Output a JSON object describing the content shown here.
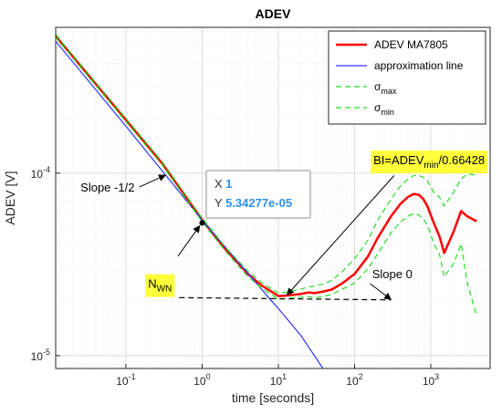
{
  "chart_data": {
    "type": "line",
    "title": "ADEV",
    "xlabel": "time [seconds]",
    "ylabel": "ADEV [V]",
    "xscale": "log",
    "yscale": "log",
    "xlim": [
      0.012,
      6000
    ],
    "ylim": [
      8.5e-06,
      0.00063
    ],
    "grid": true,
    "legend_position": "top-right",
    "x_ticks": [
      {
        "value": 0.1,
        "base": "10",
        "exp": "-1"
      },
      {
        "value": 1,
        "base": "10",
        "exp": "0"
      },
      {
        "value": 10,
        "base": "10",
        "exp": "1"
      },
      {
        "value": 100,
        "base": "10",
        "exp": "2"
      },
      {
        "value": 1000,
        "base": "10",
        "exp": "3"
      }
    ],
    "y_ticks": [
      {
        "value": 1e-05,
        "base": "10",
        "exp": "-5"
      },
      {
        "value": 0.0001,
        "base": "10",
        "exp": "-4"
      }
    ],
    "series": [
      {
        "name": "ADEV MA7805",
        "legend_base": "ADEV MA7805",
        "legend_sub": "",
        "color": "#ff0000",
        "style": "solid",
        "width": 2.5,
        "x": [
          0.012,
          0.03,
          0.1,
          0.3,
          1,
          2,
          4,
          6,
          8,
          10,
          12,
          15,
          20,
          25,
          30,
          40,
          50,
          70,
          100,
          150,
          200,
          300,
          400,
          500,
          600,
          700,
          800,
          900,
          1100,
          1300,
          1500,
          2000,
          2500,
          3000,
          4000
        ],
        "y": [
          0.000565,
          0.000357,
          0.000196,
          0.000113,
          5.55e-05,
          3.85e-05,
          2.8e-05,
          2.43e-05,
          2.25e-05,
          2.12e-05,
          2.13e-05,
          2.15e-05,
          2.18e-05,
          2.22e-05,
          2.2e-05,
          2.25e-05,
          2.3e-05,
          2.5e-05,
          2.8e-05,
          3.5e-05,
          4.4e-05,
          5.8e-05,
          6.8e-05,
          7.4e-05,
          7.7e-05,
          7.6e-05,
          7.2e-05,
          6.6e-05,
          5.3e-05,
          4.5e-05,
          3.65e-05,
          4.8e-05,
          6.2e-05,
          5.8e-05,
          5.45e-05
        ]
      },
      {
        "name": "approximation line",
        "legend_base": "approximation line",
        "legend_sub": "",
        "color": "#3333ff",
        "style": "solid",
        "width": 1.2,
        "x": [
          0.012,
          0.1,
          1,
          8,
          10,
          20,
          40
        ],
        "y": [
          0.000529,
          0.000181,
          5.53e-05,
          2.01e-05,
          1.81e-05,
          1.28e-05,
          8.3e-06
        ]
      },
      {
        "name": "σmax",
        "legend_base": "σ",
        "legend_sub": "max",
        "color": "#22dd22",
        "style": "dashed",
        "width": 1.2,
        "x": [
          0.012,
          0.03,
          0.1,
          0.3,
          1,
          2,
          4,
          6,
          8,
          10,
          12,
          15,
          20,
          25,
          30,
          40,
          50,
          70,
          100,
          150,
          200,
          300,
          400,
          500,
          600,
          700,
          800,
          900,
          1100,
          1300,
          1500,
          2000,
          2500,
          3000,
          4000
        ],
        "y": [
          0.000575,
          0.000364,
          0.0002,
          0.0001155,
          5.68e-05,
          3.95e-05,
          2.9e-05,
          2.52e-05,
          2.33e-05,
          2.2e-05,
          2.22e-05,
          2.26e-05,
          2.32e-05,
          2.38e-05,
          2.4e-05,
          2.48e-05,
          2.58e-05,
          2.9e-05,
          3.4e-05,
          4.3e-05,
          5.5e-05,
          7.2e-05,
          8.5e-05,
          9.3e-05,
          9.7e-05,
          9.7e-05,
          9.5e-05,
          9.1e-05,
          7.8e-05,
          7.4e-05,
          6.6e-05,
          7.9e-05,
          9.3e-05,
          9.9e-05,
          9.75e-05
        ]
      },
      {
        "name": "σmin",
        "legend_base": "σ",
        "legend_sub": "min",
        "color": "#22dd22",
        "style": "dashed",
        "width": 1.2,
        "x": [
          0.012,
          0.03,
          0.1,
          0.3,
          1,
          2,
          4,
          6,
          8,
          10,
          12,
          15,
          20,
          25,
          30,
          40,
          50,
          70,
          100,
          150,
          200,
          300,
          400,
          500,
          600,
          700,
          800,
          900,
          1100,
          1300,
          1500,
          2000,
          2500,
          3000,
          4000
        ],
        "y": [
          0.000555,
          0.000351,
          0.000192,
          0.0001108,
          5.42e-05,
          3.76e-05,
          2.71e-05,
          2.35e-05,
          2.17e-05,
          2.04e-05,
          2.05e-05,
          2.07e-05,
          2.09e-05,
          2.11e-05,
          2.07e-05,
          2.12e-05,
          2.16e-05,
          2.32e-05,
          2.5e-05,
          3e-05,
          3.6e-05,
          4.7e-05,
          5.4e-05,
          5.8e-05,
          6e-05,
          5.9e-05,
          5.6e-05,
          5.2e-05,
          4.1e-05,
          3.6e-05,
          2.7e-05,
          3.2e-05,
          4.1e-05,
          2.5e-05,
          1.65e-05
        ]
      },
      {
        "name": "",
        "legend_base": "",
        "legend_sub": "",
        "color": "#000000",
        "style": "dashed",
        "width": 1.2,
        "x": [
          0.5,
          300
        ],
        "y": [
          2.08e-05,
          2.02e-05
        ]
      }
    ],
    "annotations": [
      {
        "base": "Slope -1/2",
        "sub": "",
        "tail": "",
        "highlight": false,
        "anchor": "end",
        "text_x": 0.13,
        "text_y": 7.95e-05,
        "arrow_from": [
          0.15,
          8.4e-05
        ],
        "arrow_to": [
          0.33,
          9.75e-05
        ]
      },
      {
        "base": "N",
        "sub": "WN",
        "tail": "",
        "highlight": true,
        "anchor": "middle",
        "text_x": 0.28,
        "text_y": 2.35e-05,
        "arrow_from": [
          0.48,
          3.5e-05
        ],
        "arrow_to": [
          0.93,
          5.15e-05
        ]
      },
      {
        "base": "BI=ADEV",
        "sub": "min",
        "tail": "/0.66428",
        "highlight": true,
        "anchor": "middle",
        "text_x": 950,
        "text_y": 0.000112,
        "arrow_from": [
          330,
          9.7e-05
        ],
        "arrow_to": [
          13,
          2.15e-05
        ]
      },
      {
        "base": "Slope 0",
        "sub": "",
        "tail": "",
        "highlight": false,
        "anchor": "start",
        "text_x": 170,
        "text_y": 2.65e-05,
        "arrow_from": [
          160,
          2.48e-05
        ],
        "arrow_to": [
          300,
          2.03e-05
        ]
      }
    ],
    "marker_point": {
      "x": 1,
      "y": 5.34277e-05
    },
    "datatip": {
      "x_label": "X",
      "x_value": "1",
      "y_label": "Y",
      "y_value": "5.34277e-05",
      "value_color": "#2f8fe8"
    }
  }
}
